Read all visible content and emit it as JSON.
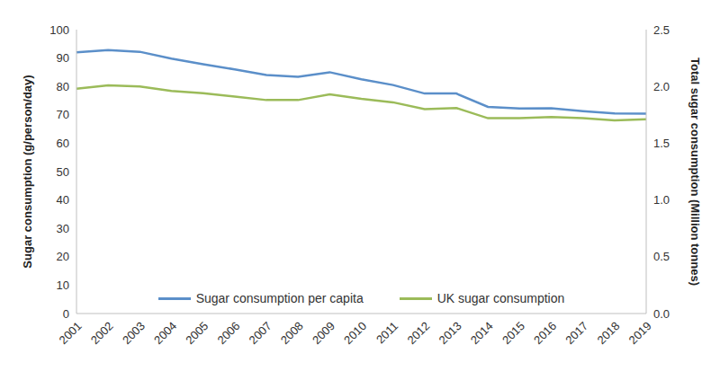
{
  "chart_data": {
    "type": "line",
    "categories": [
      "2001",
      "2002",
      "2003",
      "2004",
      "2005",
      "2006",
      "2007",
      "2008",
      "2009",
      "2010",
      "2011",
      "2012",
      "2013",
      "2014",
      "2015",
      "2016",
      "2017",
      "2018",
      "2019"
    ],
    "series": [
      {
        "name": "Sugar consumption per capita",
        "color": "#5b8fc9",
        "values": [
          92,
          92.8,
          92.2,
          89.8,
          87.8,
          86,
          84,
          83.4,
          85,
          82.5,
          80.5,
          77.5,
          77.5,
          72.8,
          72.2,
          72.3,
          71.3,
          70.5,
          70.4
        ]
      },
      {
        "name": "UK sugar consumption",
        "color": "#9bbb59",
        "axis": "y2",
        "values": [
          1.98,
          2.01,
          2.0,
          1.96,
          1.94,
          1.91,
          1.88,
          1.88,
          1.93,
          1.89,
          1.86,
          1.8,
          1.81,
          1.72,
          1.72,
          1.73,
          1.72,
          1.7,
          1.71
        ]
      }
    ],
    "y_label": "Sugar consumption (g/person/day)",
    "y2_label": "Total sugar consumption (Million tonnes)",
    "ylim": [
      0,
      100
    ],
    "yticks": [
      0,
      10,
      20,
      30,
      40,
      50,
      60,
      70,
      80,
      90,
      100
    ],
    "y2lim": [
      0,
      2.5
    ],
    "y2ticks": [
      {
        "value": 0,
        "label": "0.0"
      },
      0.5,
      {
        "value": 1,
        "label": "1.0"
      },
      1.5,
      {
        "value": 2,
        "label": "2.0"
      },
      2.5
    ],
    "grid": false,
    "legend": "bottom"
  }
}
